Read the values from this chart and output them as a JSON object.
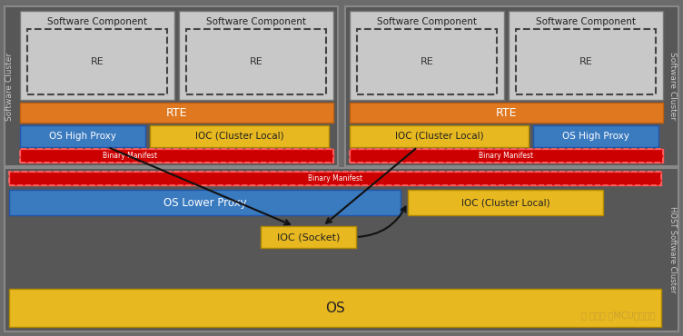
{
  "bg_color": "#6b6b6b",
  "sw_cluster_bg": "#575757",
  "sw_comp_bg": "#c8c8c8",
  "rte_color": "#e07820",
  "blue_color": "#3a7abf",
  "yellow_color": "#e8b820",
  "red_color": "#cc0000",
  "os_color": "#e8b820",
  "left_label": "Software Cluster",
  "right_label": "Software Cluster",
  "host_label": "HOST Software Cluster",
  "watermark": "公众号·汿MCU软件设计"
}
